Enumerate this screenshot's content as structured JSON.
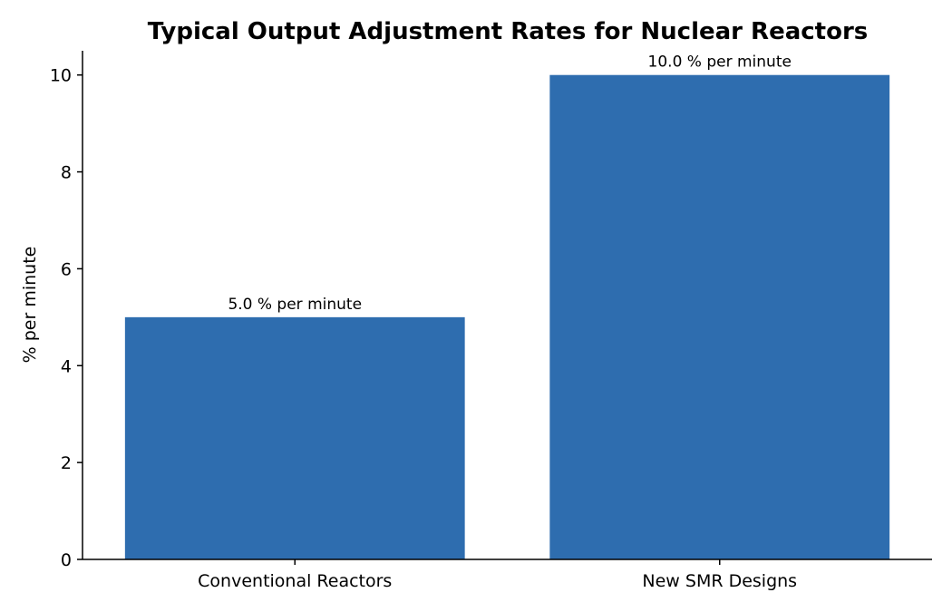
{
  "chart_data": {
    "type": "bar",
    "title": "Typical Output Adjustment Rates for Nuclear Reactors",
    "xlabel": "",
    "ylabel": "% per minute",
    "categories": [
      "Conventional Reactors",
      "New SMR Designs"
    ],
    "values": [
      5.0,
      10.0
    ],
    "data_labels": [
      "5.0 % per minute",
      "10.0 % per minute"
    ],
    "ylim": [
      0,
      10.5
    ],
    "yticks": [
      0,
      2,
      4,
      6,
      8,
      10
    ],
    "ytick_labels": [
      "0",
      "2",
      "4",
      "6",
      "8",
      "10"
    ],
    "grid": false,
    "legend": "none",
    "bar_color": "#2e6daf"
  }
}
